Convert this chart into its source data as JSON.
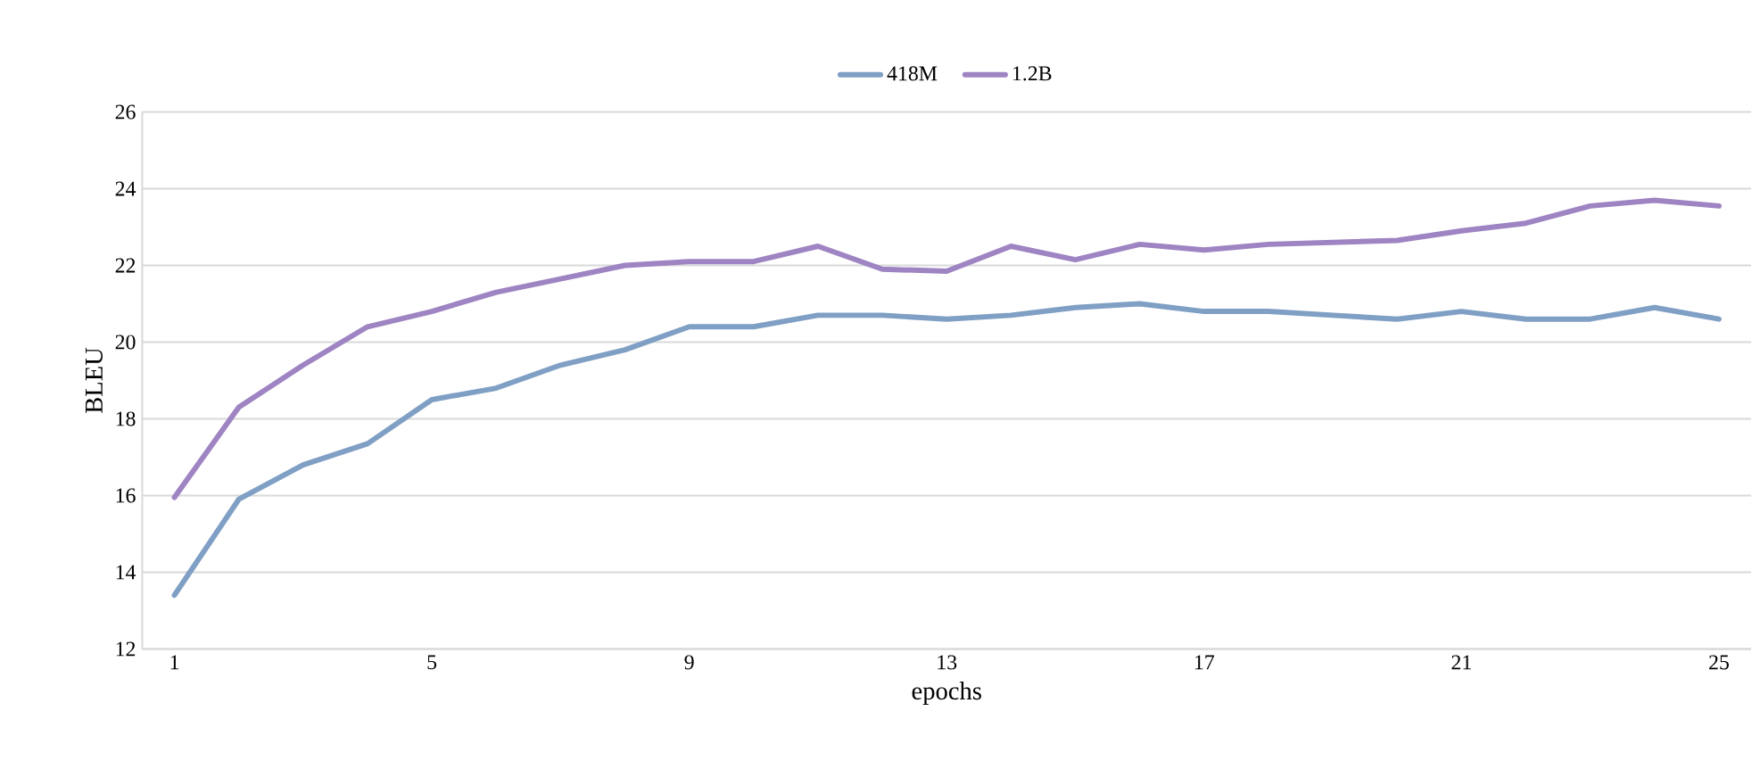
{
  "chart_data": {
    "type": "line",
    "xlabel": "epochs",
    "ylabel": "BLEU",
    "x": [
      1,
      2,
      3,
      4,
      5,
      6,
      7,
      8,
      9,
      10,
      11,
      12,
      13,
      14,
      15,
      16,
      17,
      18,
      19,
      20,
      21,
      22,
      23,
      24,
      25
    ],
    "series": [
      {
        "name": "418M",
        "color": "#7f9fc4",
        "values": [
          13.4,
          15.9,
          16.8,
          17.35,
          18.5,
          18.8,
          19.4,
          19.8,
          20.4,
          20.4,
          20.7,
          20.7,
          20.6,
          20.7,
          20.9,
          21.0,
          20.8,
          20.8,
          20.7,
          20.6,
          20.8,
          20.6,
          20.6,
          20.9,
          20.6
        ]
      },
      {
        "name": "1.2B",
        "color": "#9e84c2",
        "values": [
          15.95,
          18.3,
          19.4,
          20.4,
          20.8,
          21.3,
          21.65,
          22.0,
          22.1,
          22.1,
          22.5,
          21.9,
          21.85,
          22.5,
          22.15,
          22.55,
          22.4,
          22.55,
          22.6,
          22.65,
          22.9,
          23.1,
          23.55,
          23.7,
          23.55
        ]
      }
    ],
    "xlim": [
      0.5,
      25.5
    ],
    "xticks": [
      1,
      5,
      9,
      13,
      17,
      21,
      25
    ],
    "ylim": [
      12,
      26
    ],
    "yticks": [
      12,
      14,
      16,
      18,
      20,
      22,
      24,
      26
    ],
    "grid": "y",
    "legend": "top",
    "marker": "none",
    "line_style": "solid"
  }
}
